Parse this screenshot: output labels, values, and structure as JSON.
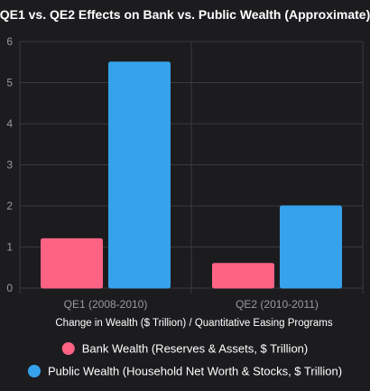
{
  "chart_data": {
    "type": "bar",
    "title": "QE1 vs. QE2 Effects on Bank vs. Public Wealth (Approximate)",
    "xlabel": "Change in Wealth ($ Trillion) / Quantitative Easing Programs",
    "ylabel": "",
    "categories": [
      "QE1 (2008-2010)",
      "QE2 (2010-2011)"
    ],
    "ylim": [
      0,
      6
    ],
    "yticks": [
      0,
      1,
      2,
      3,
      4,
      5,
      6
    ],
    "grid": true,
    "legend_position": "bottom",
    "series": [
      {
        "name": "Bank Wealth (Reserves & Assets, $ Trillion)",
        "color": "#ff6384",
        "values": [
          1.2,
          0.6
        ]
      },
      {
        "name": "Public Wealth (Household Net Worth & Stocks, $ Trillion)",
        "color": "#36a2eb",
        "values": [
          5.5,
          2.0
        ]
      }
    ]
  }
}
